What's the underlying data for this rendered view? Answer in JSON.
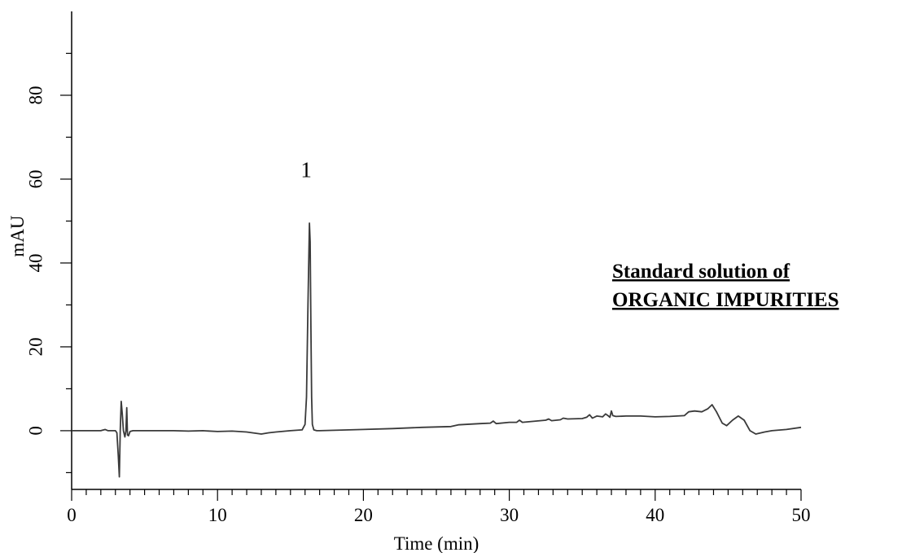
{
  "chart_data": {
    "type": "line",
    "title": "",
    "xlabel": "Time (min)",
    "ylabel": "mAU",
    "xlim": [
      0,
      50
    ],
    "ylim": [
      -14,
      100
    ],
    "x_ticks": [
      0,
      10,
      20,
      30,
      40,
      50
    ],
    "y_ticks": [
      0,
      20,
      40,
      60,
      80
    ],
    "grid": false,
    "legend": "none",
    "line_color": "#3a3a3a",
    "series": [
      {
        "x": [
          0,
          1,
          2,
          2.3,
          2.5,
          3.0,
          3.1,
          3.2,
          3.27,
          3.33,
          3.4,
          3.47,
          3.55,
          3.65,
          3.72,
          3.78,
          3.83,
          3.9,
          4.0,
          4.2,
          5,
          6,
          7,
          8,
          9,
          10,
          11,
          12,
          13,
          13.5,
          14,
          15,
          15.8,
          16.0,
          16.1,
          16.2,
          16.3,
          16.35,
          16.4,
          16.45,
          16.5,
          16.6,
          16.8,
          17,
          18,
          20,
          22,
          24,
          26,
          26.5,
          27,
          28,
          28.7,
          28.9,
          29.1,
          30,
          30.5,
          30.7,
          30.9,
          31.5,
          32.5,
          32.7,
          32.9,
          33.5,
          33.7,
          34,
          35,
          35.3,
          35.5,
          35.7,
          36,
          36.4,
          36.6,
          36.8,
          36.9,
          37.0,
          37.1,
          37.3,
          38,
          39,
          40,
          41,
          42,
          42.3,
          42.7,
          43.2,
          43.6,
          43.9,
          44.2,
          44.6,
          44.9,
          45.3,
          45.7,
          46.1,
          46.5,
          46.9,
          47.5,
          48,
          49,
          50
        ],
        "y": [
          0,
          0,
          0,
          0.3,
          0,
          0,
          -0.5,
          -6,
          -11,
          0,
          7,
          4,
          0,
          -1.5,
          0,
          5.5,
          -1,
          -1.2,
          -0.2,
          0,
          0,
          0,
          0,
          -0.1,
          0,
          -0.2,
          -0.1,
          -0.3,
          -0.8,
          -0.5,
          -0.3,
          0,
          0.2,
          1.5,
          8,
          30,
          49.5,
          45,
          25,
          8,
          1.5,
          0.2,
          0,
          0,
          0.1,
          0.3,
          0.5,
          0.8,
          1,
          1.4,
          1.5,
          1.7,
          1.8,
          2.3,
          1.7,
          2,
          2,
          2.5,
          2,
          2.2,
          2.5,
          2.8,
          2.4,
          2.6,
          3,
          2.8,
          2.9,
          3.2,
          3.8,
          3,
          3.5,
          3.3,
          4,
          3.5,
          3.2,
          4.7,
          3.6,
          3.4,
          3.5,
          3.5,
          3.3,
          3.4,
          3.6,
          4.5,
          4.7,
          4.5,
          5.2,
          6.2,
          4.5,
          1.8,
          1.2,
          2.5,
          3.5,
          2.5,
          0,
          -0.8,
          -0.3,
          0,
          0.3,
          0.8
        ]
      }
    ],
    "annotations": [
      {
        "text": "1",
        "x": 16.3,
        "y": 60.5
      }
    ]
  },
  "annotation_box": {
    "line1": "Standard solution of",
    "line2": "ORGANIC IMPURITIES"
  }
}
